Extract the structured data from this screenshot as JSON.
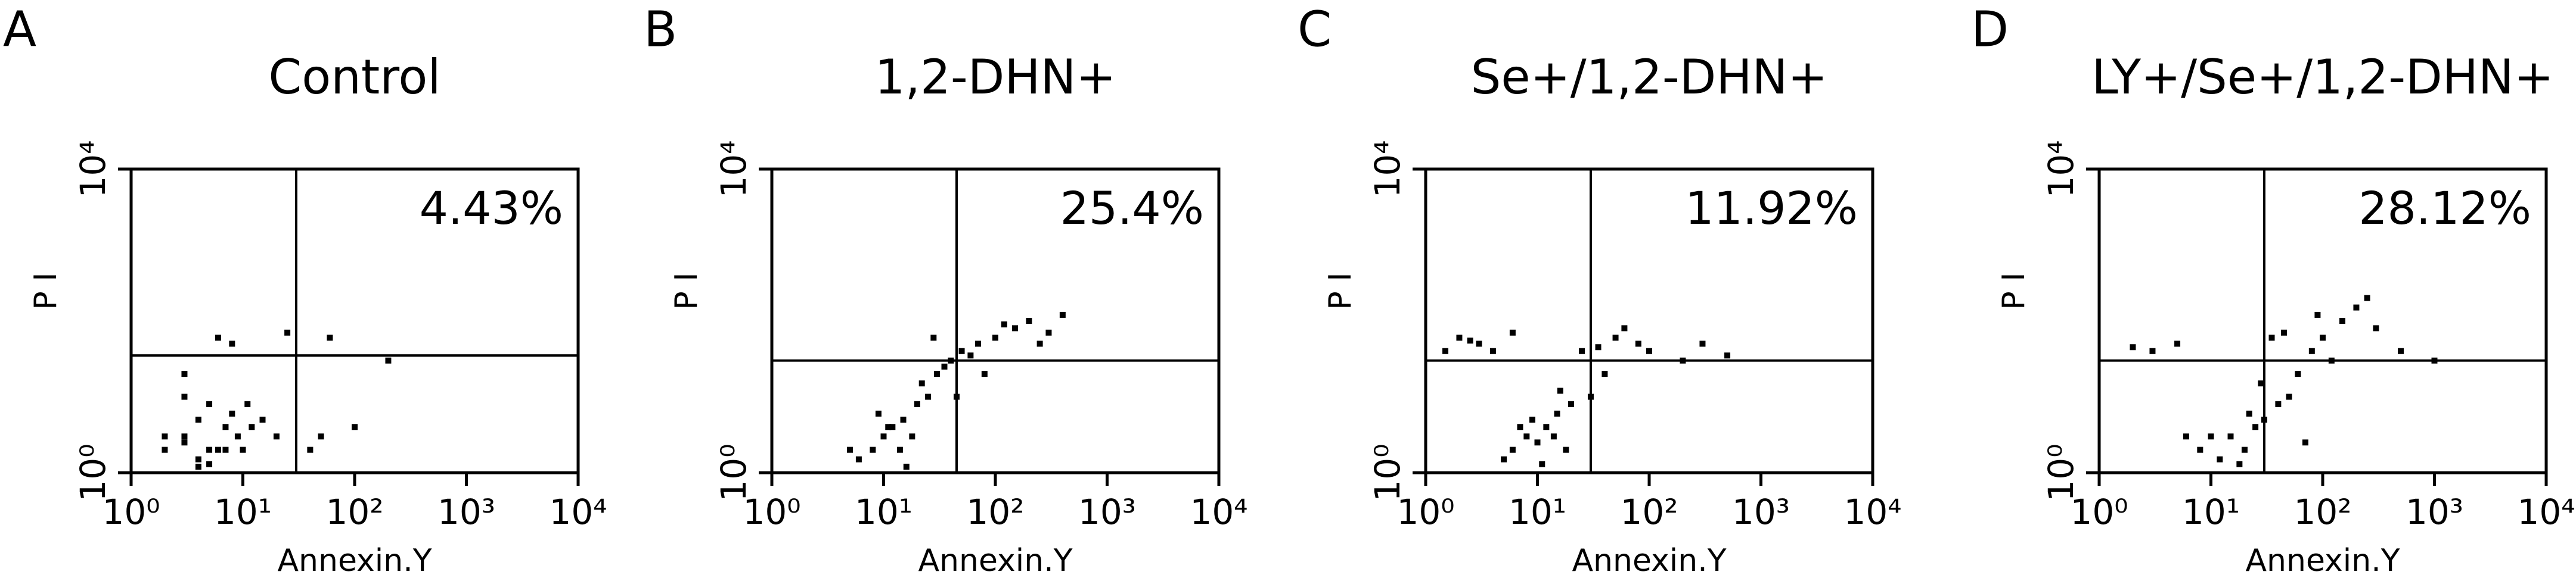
{
  "chart_data": [
    {
      "type": "scatter",
      "panel_label": "A",
      "title": "Control",
      "annotation": "4.43%",
      "x_label": "Annexin.Y",
      "y_label": "P I",
      "log_x": true,
      "log_y": true,
      "color": "#000000",
      "xlim": [
        1,
        10000
      ],
      "ylim": [
        1,
        10000
      ],
      "xticks": [
        {
          "value": 1,
          "label": "10⁰"
        },
        {
          "value": 10,
          "label": "10¹"
        },
        {
          "value": 100,
          "label": "10²"
        },
        {
          "value": 1000,
          "label": "10³"
        },
        {
          "value": 10000,
          "label": "10⁴"
        }
      ],
      "yticks": [
        {
          "value": 1,
          "label": "10⁰"
        },
        {
          "value": 10000,
          "label": "10⁴"
        }
      ],
      "quadrant_x": 30,
      "quadrant_y": 35,
      "x": [
        3,
        5,
        4,
        7,
        6,
        8,
        2,
        10,
        5,
        12,
        4,
        9,
        3,
        6,
        15,
        2,
        8,
        20,
        40,
        60,
        5,
        3,
        100,
        200,
        7,
        25,
        4,
        11,
        3,
        50
      ],
      "y": [
        3,
        2,
        5,
        4,
        2,
        6,
        3,
        2,
        8,
        4,
        1.5,
        3,
        10,
        60,
        5,
        2,
        50,
        3,
        2,
        60,
        1.3,
        20,
        4,
        30,
        2,
        70,
        1.2,
        8,
        2.5,
        3
      ]
    },
    {
      "type": "scatter",
      "panel_label": "B",
      "title": "1,2-DHN+",
      "annotation": "25.4%",
      "x_label": "Annexin.Y",
      "y_label": "P I",
      "log_x": true,
      "log_y": true,
      "color": "#000000",
      "xlim": [
        1,
        10000
      ],
      "ylim": [
        1,
        10000
      ],
      "xticks": [
        {
          "value": 1,
          "label": "10⁰"
        },
        {
          "value": 10,
          "label": "10¹"
        },
        {
          "value": 100,
          "label": "10²"
        },
        {
          "value": 1000,
          "label": "10³"
        },
        {
          "value": 10000,
          "label": "10⁴"
        }
      ],
      "yticks": [
        {
          "value": 1,
          "label": "10⁰"
        },
        {
          "value": 10000,
          "label": "10⁴"
        }
      ],
      "quadrant_x": 45,
      "quadrant_y": 30,
      "x": [
        10,
        15,
        8,
        20,
        12,
        25,
        30,
        18,
        6,
        40,
        50,
        70,
        100,
        150,
        200,
        300,
        400,
        9,
        14,
        22,
        35,
        60,
        120,
        250,
        11,
        16,
        5,
        80,
        28,
        45
      ],
      "y": [
        3,
        5,
        2,
        8,
        4,
        10,
        20,
        3,
        1.5,
        30,
        40,
        50,
        60,
        80,
        100,
        70,
        120,
        6,
        2,
        15,
        25,
        35,
        90,
        50,
        4,
        1.2,
        2,
        20,
        60,
        10
      ]
    },
    {
      "type": "scatter",
      "panel_label": "C",
      "title": "Se+/1,2-DHN+",
      "annotation": "11.92%",
      "x_label": "Annexin.Y",
      "y_label": "P I",
      "log_x": true,
      "log_y": true,
      "color": "#000000",
      "xlim": [
        1,
        10000
      ],
      "ylim": [
        1,
        10000
      ],
      "xticks": [
        {
          "value": 1,
          "label": "10⁰"
        },
        {
          "value": 10,
          "label": "10¹"
        },
        {
          "value": 100,
          "label": "10²"
        },
        {
          "value": 1000,
          "label": "10³"
        },
        {
          "value": 10000,
          "label": "10⁴"
        }
      ],
      "yticks": [
        {
          "value": 1,
          "label": "10⁰"
        },
        {
          "value": 10000,
          "label": "10⁴"
        }
      ],
      "quadrant_x": 30,
      "quadrant_y": 30,
      "x": [
        8,
        12,
        6,
        15,
        10,
        20,
        5,
        30,
        40,
        25,
        3,
        2,
        4,
        6,
        50,
        80,
        100,
        200,
        300,
        9,
        14,
        18,
        7,
        11,
        60,
        1.5,
        2.5,
        35,
        500,
        16
      ],
      "y": [
        3,
        4,
        2,
        6,
        2.5,
        8,
        1.5,
        10,
        20,
        40,
        50,
        60,
        40,
        70,
        60,
        50,
        40,
        30,
        50,
        5,
        3,
        2,
        4,
        1.3,
        80,
        40,
        55,
        45,
        35,
        12
      ]
    },
    {
      "type": "scatter",
      "panel_label": "D",
      "title": "LY+/Se+/1,2-DHN+",
      "annotation": "28.12%",
      "x_label": "Annexin.Y",
      "y_label": "P I",
      "log_x": true,
      "log_y": true,
      "color": "#000000",
      "xlim": [
        1,
        10000
      ],
      "ylim": [
        1,
        10000
      ],
      "xticks": [
        {
          "value": 1,
          "label": "10⁰"
        },
        {
          "value": 10,
          "label": "10¹"
        },
        {
          "value": 100,
          "label": "10²"
        },
        {
          "value": 1000,
          "label": "10³"
        },
        {
          "value": 10000,
          "label": "10⁴"
        }
      ],
      "yticks": [
        {
          "value": 1,
          "label": "10⁰"
        },
        {
          "value": 10000,
          "label": "10⁴"
        }
      ],
      "quadrant_x": 30,
      "quadrant_y": 30,
      "x": [
        15,
        20,
        25,
        30,
        12,
        40,
        50,
        60,
        80,
        100,
        150,
        200,
        300,
        10,
        8,
        5,
        3,
        2,
        120,
        70,
        35,
        45,
        18,
        22,
        500,
        1000,
        90,
        28,
        250,
        6
      ],
      "y": [
        3,
        2,
        4,
        5,
        1.5,
        8,
        10,
        20,
        40,
        60,
        100,
        150,
        80,
        3,
        2,
        50,
        40,
        45,
        30,
        2.5,
        60,
        70,
        1.3,
        6,
        40,
        30,
        120,
        15,
        200,
        3
      ]
    }
  ]
}
